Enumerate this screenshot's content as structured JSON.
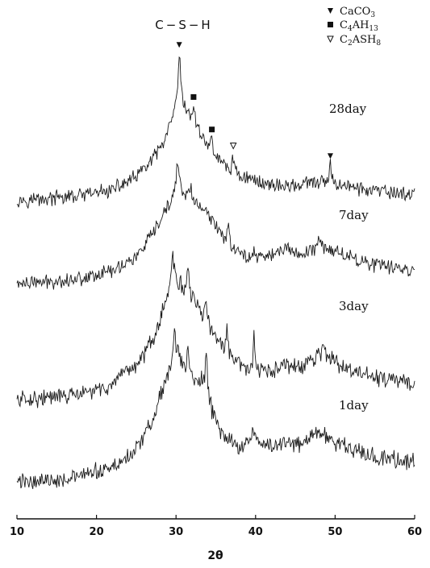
{
  "chart_data": {
    "type": "line",
    "title": "",
    "xlabel": "2θ",
    "ylabel": "",
    "xlim": [
      10,
      60
    ],
    "x_ticks": [
      "10",
      "20",
      "30",
      "40",
      "50",
      "60"
    ],
    "y_ticks": false,
    "grid": false,
    "legend": {
      "position": "top-right",
      "entries": [
        {
          "symbol": "filled-triangle-down",
          "label": "CaCO",
          "sub": "3"
        },
        {
          "symbol": "filled-square",
          "label": "C",
          "sub": "4",
          "label2": "AH",
          "sub2": "13"
        },
        {
          "symbol": "open-triangle-down",
          "label": "C",
          "sub": "2",
          "label2": "ASH",
          "sub2": "8"
        }
      ]
    },
    "phase_label": "C−S−H",
    "series": [
      {
        "name": "28day",
        "baseline": 0,
        "points": [
          [
            10,
            0.0
          ],
          [
            14,
            0.02
          ],
          [
            18,
            0.07
          ],
          [
            22,
            0.18
          ],
          [
            25,
            0.42
          ],
          [
            27,
            0.72
          ],
          [
            28.5,
            1.05
          ],
          [
            29.5,
            1.45
          ],
          [
            30.0,
            1.75
          ],
          [
            30.4,
            2.2
          ],
          [
            31.0,
            1.7
          ],
          [
            32.0,
            1.5
          ],
          [
            33.0,
            1.25
          ],
          [
            34.0,
            1.0
          ],
          [
            35.5,
            0.72
          ],
          [
            37.0,
            0.52
          ],
          [
            39.0,
            0.4
          ],
          [
            41.0,
            0.3
          ],
          [
            44.0,
            0.25
          ],
          [
            47.0,
            0.3
          ],
          [
            49.0,
            0.33
          ],
          [
            50.5,
            0.3
          ],
          [
            53.0,
            0.2
          ],
          [
            56.0,
            0.14
          ],
          [
            60.0,
            0.1
          ]
        ],
        "peaks": [
          {
            "x": 30.4,
            "h": 0.45,
            "marker": "filled-triangle-down"
          },
          {
            "x": 32.2,
            "h": 0.25,
            "marker": "filled-square"
          },
          {
            "x": 34.5,
            "h": 0.2,
            "marker": "filled-square"
          },
          {
            "x": 37.2,
            "h": 0.3,
            "marker": "open-triangle-down"
          },
          {
            "x": 49.4,
            "h": 0.3,
            "marker": "filled-triangle-down"
          }
        ]
      },
      {
        "name": "7day",
        "baseline": 0,
        "points": [
          [
            10,
            0.0
          ],
          [
            14,
            0.03
          ],
          [
            18,
            0.1
          ],
          [
            22,
            0.25
          ],
          [
            25,
            0.5
          ],
          [
            27,
            0.9
          ],
          [
            28.5,
            1.3
          ],
          [
            29.5,
            1.6
          ],
          [
            30.2,
            1.95
          ],
          [
            31.0,
            1.7
          ],
          [
            32.0,
            1.6
          ],
          [
            33.0,
            1.45
          ],
          [
            34.5,
            1.2
          ],
          [
            36.0,
            0.9
          ],
          [
            38.0,
            0.55
          ],
          [
            40.0,
            0.5
          ],
          [
            42.0,
            0.55
          ],
          [
            44.0,
            0.65
          ],
          [
            46.0,
            0.55
          ],
          [
            48.0,
            0.72
          ],
          [
            49.5,
            0.65
          ],
          [
            52.0,
            0.5
          ],
          [
            55.0,
            0.35
          ],
          [
            60.0,
            0.25
          ]
        ],
        "peaks": [
          {
            "x": 30.2,
            "h": 0.4
          },
          {
            "x": 31.8,
            "h": 0.2
          },
          {
            "x": 36.6,
            "h": 0.35
          },
          {
            "x": 39.8,
            "h": 0.15
          },
          {
            "x": 48.0,
            "h": 0.12
          }
        ]
      },
      {
        "name": "3day",
        "baseline": 0,
        "points": [
          [
            10,
            0.0
          ],
          [
            14,
            0.03
          ],
          [
            18,
            0.08
          ],
          [
            22,
            0.22
          ],
          [
            25,
            0.55
          ],
          [
            26.5,
            0.8
          ],
          [
            28.0,
            1.25
          ],
          [
            29.0,
            1.75
          ],
          [
            29.6,
            2.0
          ],
          [
            30.5,
            1.85
          ],
          [
            31.5,
            1.7
          ],
          [
            33.0,
            1.45
          ],
          [
            34.5,
            1.1
          ],
          [
            36.0,
            0.8
          ],
          [
            38.0,
            0.55
          ],
          [
            40.0,
            0.45
          ],
          [
            42.0,
            0.45
          ],
          [
            44.0,
            0.55
          ],
          [
            46.0,
            0.5
          ],
          [
            48.0,
            0.75
          ],
          [
            49.0,
            0.7
          ],
          [
            51.0,
            0.5
          ],
          [
            55.0,
            0.35
          ],
          [
            60.0,
            0.25
          ]
        ],
        "peaks": [
          {
            "x": 26.6,
            "h": 0.2
          },
          {
            "x": 29.6,
            "h": 0.3
          },
          {
            "x": 31.5,
            "h": 0.35
          },
          {
            "x": 33.8,
            "h": 0.3
          },
          {
            "x": 36.4,
            "h": 0.35
          },
          {
            "x": 39.8,
            "h": 0.5
          },
          {
            "x": 48.6,
            "h": 0.15
          }
        ]
      },
      {
        "name": "1day",
        "baseline": 0,
        "points": [
          [
            10,
            0.0
          ],
          [
            14,
            0.03
          ],
          [
            18,
            0.08
          ],
          [
            22,
            0.22
          ],
          [
            25,
            0.5
          ],
          [
            27,
            0.95
          ],
          [
            28.5,
            1.5
          ],
          [
            29.5,
            1.85
          ],
          [
            30.2,
            2.05
          ],
          [
            31.0,
            1.75
          ],
          [
            31.5,
            1.8
          ],
          [
            32.5,
            1.55
          ],
          [
            33.8,
            1.6
          ],
          [
            34.5,
            1.1
          ],
          [
            36.0,
            0.7
          ],
          [
            38.0,
            0.55
          ],
          [
            40.0,
            0.65
          ],
          [
            42.0,
            0.55
          ],
          [
            44.0,
            0.6
          ],
          [
            46.0,
            0.6
          ],
          [
            48.0,
            0.8
          ],
          [
            49.5,
            0.65
          ],
          [
            52.0,
            0.5
          ],
          [
            55.0,
            0.4
          ],
          [
            60.0,
            0.3
          ]
        ],
        "peaks": [
          {
            "x": 29.8,
            "h": 0.4
          },
          {
            "x": 31.5,
            "h": 0.2
          },
          {
            "x": 33.8,
            "h": 0.3
          },
          {
            "x": 39.6,
            "h": 0.15
          },
          {
            "x": 43.5,
            "h": 0.15
          }
        ]
      }
    ]
  }
}
